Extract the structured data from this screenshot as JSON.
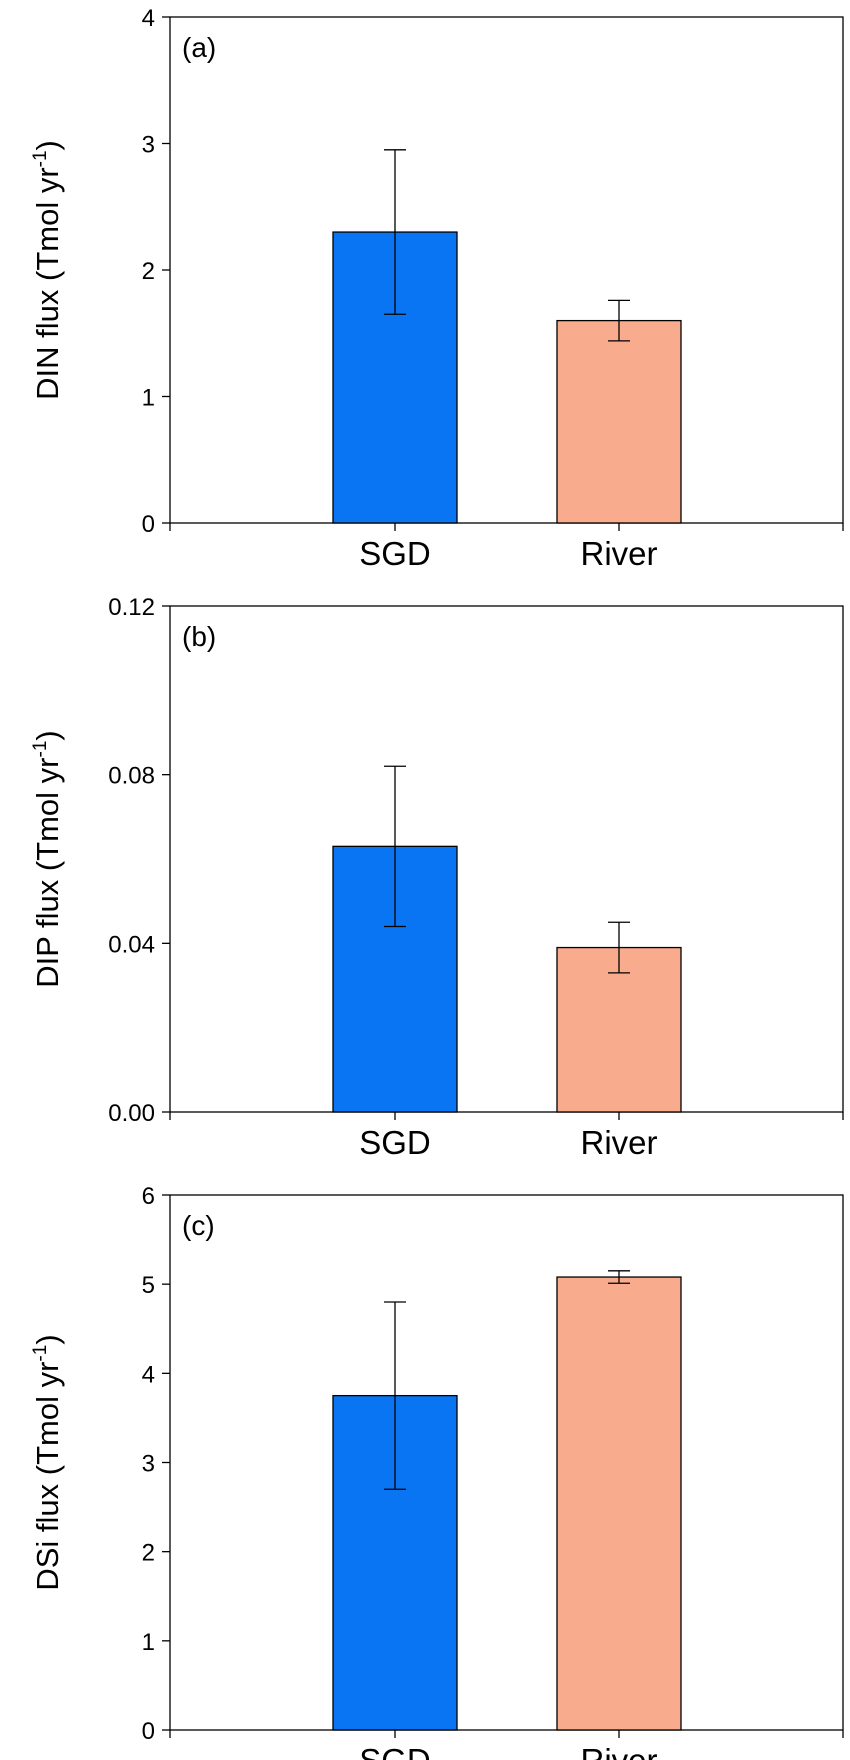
{
  "colors": {
    "sgd": "#0a75f2",
    "river": "#f8ab8d",
    "axis": "#000000"
  },
  "chart_data": [
    {
      "type": "bar",
      "panel_label": "(a)",
      "ylabel": "DIN flux (Tmol yr",
      "ylabel_sup": "-1",
      "ylabel_close": ")",
      "categories": [
        "SGD",
        "River"
      ],
      "values": [
        2.3,
        1.6
      ],
      "errors": [
        0.65,
        0.16
      ],
      "ylim": [
        0,
        4
      ],
      "yticks": [
        0,
        1,
        2,
        3,
        4
      ],
      "ytick_labels": [
        "0",
        "1",
        "2",
        "3",
        "4"
      ]
    },
    {
      "type": "bar",
      "panel_label": "(b)",
      "ylabel": "DIP flux (Tmol yr",
      "ylabel_sup": "-1",
      "ylabel_close": ")",
      "categories": [
        "SGD",
        "River"
      ],
      "values": [
        0.063,
        0.039
      ],
      "errors": [
        0.019,
        0.006
      ],
      "ylim": [
        0,
        0.12
      ],
      "yticks": [
        0,
        0.04,
        0.08,
        0.12
      ],
      "ytick_labels": [
        "0.00",
        "0.04",
        "0.08",
        "0.12"
      ]
    },
    {
      "type": "bar",
      "panel_label": "(c)",
      "ylabel": "DSi flux (Tmol yr",
      "ylabel_sup": "-1",
      "ylabel_close": ")",
      "categories": [
        "SGD",
        "River"
      ],
      "values": [
        3.75,
        5.08
      ],
      "errors": [
        1.05,
        0.07
      ],
      "ylim": [
        0,
        6
      ],
      "yticks": [
        0,
        1,
        2,
        3,
        4,
        5,
        6
      ],
      "ytick_labels": [
        "0",
        "1",
        "2",
        "3",
        "4",
        "5",
        "6"
      ]
    }
  ]
}
